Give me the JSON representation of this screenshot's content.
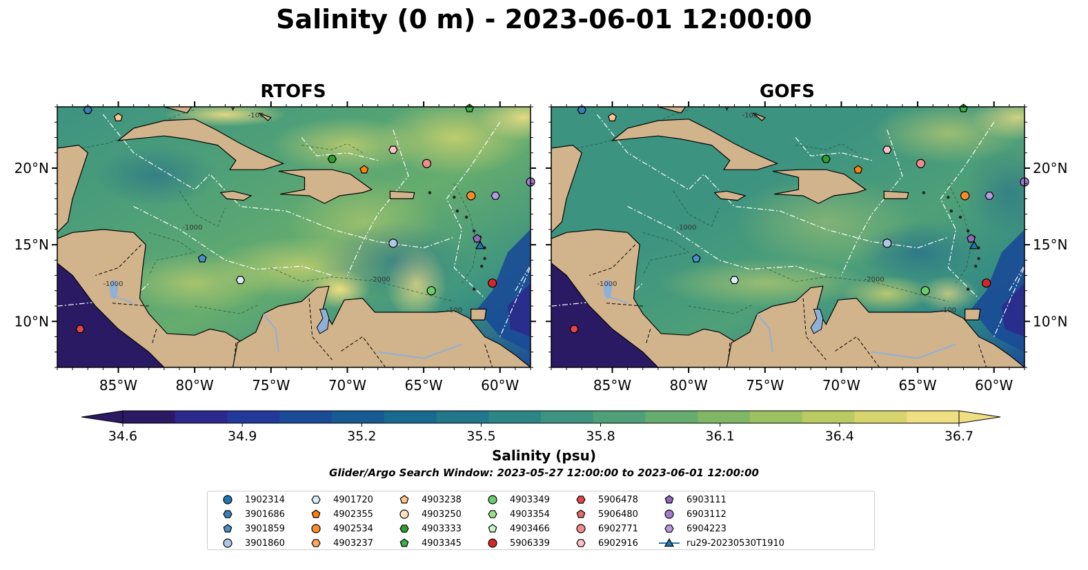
{
  "title": "Salinity (0 m) - 2023-06-01 12:00:00",
  "panels": [
    {
      "title": "RTOFS"
    },
    {
      "title": "GOFS"
    }
  ],
  "map": {
    "lon_range": [
      -89,
      -58
    ],
    "lat_range": [
      7,
      24
    ],
    "lon_ticks": [
      "85°W",
      "80°W",
      "75°W",
      "70°W",
      "65°W",
      "60°W"
    ],
    "lat_ticks": [
      "20°N",
      "15°N",
      "10°N"
    ],
    "land_color": "#d2b48c",
    "river_color": "#8fb0d8",
    "contour_labels": [
      "-100",
      "-1000",
      "-2000"
    ]
  },
  "colorbar": {
    "label": "Salinity (psu)",
    "ticks": [
      "34.6",
      "34.9",
      "35.2",
      "35.5",
      "35.8",
      "36.1",
      "36.4",
      "36.7"
    ],
    "min": 34.6,
    "max": 36.7,
    "colormap": "haline",
    "colors": [
      "#2a1a64",
      "#2b2a8c",
      "#22399a",
      "#1a4b96",
      "#185b92",
      "#196a8e",
      "#22788a",
      "#2d8686",
      "#3c9380",
      "#4fa078",
      "#66ac6e",
      "#80b765",
      "#9cc160",
      "#b9cb62",
      "#d6d56d",
      "#efde82"
    ],
    "extend": "both"
  },
  "search_window": "Glider/Argo Search Window: 2023-05-27 12:00:00 to 2023-06-01 12:00:00",
  "legend": [
    {
      "label": "1902314",
      "marker": "circle",
      "color": "#1f77b4"
    },
    {
      "label": "3901686",
      "marker": "hexagon",
      "color": "#3a7fb8"
    },
    {
      "label": "3901859",
      "marker": "pentagon",
      "color": "#4a90c8"
    },
    {
      "label": "3901860",
      "marker": "circle",
      "color": "#aec7e8"
    },
    {
      "label": "4901720",
      "marker": "hexagon",
      "color": "#d6eef8"
    },
    {
      "label": "4902355",
      "marker": "pentagon",
      "color": "#ff7f0e"
    },
    {
      "label": "4902534",
      "marker": "circle",
      "color": "#ff8c2a"
    },
    {
      "label": "4903237",
      "marker": "hexagon",
      "color": "#ffa95a"
    },
    {
      "label": "4903238",
      "marker": "pentagon",
      "color": "#ffc48f"
    },
    {
      "label": "4903250",
      "marker": "circle",
      "color": "#ffe0c2"
    },
    {
      "label": "4903333",
      "marker": "hexagon",
      "color": "#2ca02c"
    },
    {
      "label": "4903345",
      "marker": "pentagon",
      "color": "#3cb044"
    },
    {
      "label": "4903349",
      "marker": "circle",
      "color": "#6ccb6c"
    },
    {
      "label": "4903354",
      "marker": "hexagon",
      "color": "#98df8a"
    },
    {
      "label": "4903466",
      "marker": "pentagon",
      "color": "#ccf5cc"
    },
    {
      "label": "5906339",
      "marker": "circle",
      "color": "#d62728"
    },
    {
      "label": "5906478",
      "marker": "hexagon",
      "color": "#e04548"
    },
    {
      "label": "5906480",
      "marker": "pentagon",
      "color": "#ea6868"
    },
    {
      "label": "6902771",
      "marker": "circle",
      "color": "#f08c8c"
    },
    {
      "label": "6902916",
      "marker": "hexagon",
      "color": "#ffc0c8"
    },
    {
      "label": "6903111",
      "marker": "pentagon",
      "color": "#9467bd"
    },
    {
      "label": "6903112",
      "marker": "circle",
      "color": "#a37ccc"
    },
    {
      "label": "6904223",
      "marker": "hexagon",
      "color": "#b79be0"
    },
    {
      "label": "ru29-20230530T1910",
      "marker": "triangle-line",
      "color": "#1f77b4"
    }
  ],
  "points": [
    {
      "label": "3901686",
      "lon": -87.0,
      "lat": 23.8
    },
    {
      "label": "4903238",
      "lon": -85.0,
      "lat": 23.3
    },
    {
      "label": "4903333",
      "lon": -71.0,
      "lat": 20.6
    },
    {
      "label": "4902355",
      "lon": -68.9,
      "lat": 19.9
    },
    {
      "label": "6902916",
      "lon": -67.0,
      "lat": 21.2
    },
    {
      "label": "6902771",
      "lon": -64.8,
      "lat": 20.3
    },
    {
      "label": "4902534",
      "lon": -61.9,
      "lat": 18.2
    },
    {
      "label": "6904223",
      "lon": -60.3,
      "lat": 18.2
    },
    {
      "label": "6903112",
      "lon": -58.0,
      "lat": 19.1
    },
    {
      "label": "4903345",
      "lon": -62.0,
      "lat": 23.9
    },
    {
      "label": "3901860",
      "lon": -67.0,
      "lat": 15.1
    },
    {
      "label": "6903111",
      "lon": -61.5,
      "lat": 15.4
    },
    {
      "label": "ru29-20230530T1910",
      "lon": -61.3,
      "lat": 14.9
    },
    {
      "label": "5906339",
      "lon": -60.5,
      "lat": 12.5
    },
    {
      "label": "4903349",
      "lon": -64.5,
      "lat": 12.0
    },
    {
      "label": "3901859",
      "lon": -79.5,
      "lat": 14.1
    },
    {
      "label": "4901720",
      "lon": -77.0,
      "lat": 12.7
    },
    {
      "label": "5906478",
      "lon": -87.5,
      "lat": 9.5
    }
  ]
}
